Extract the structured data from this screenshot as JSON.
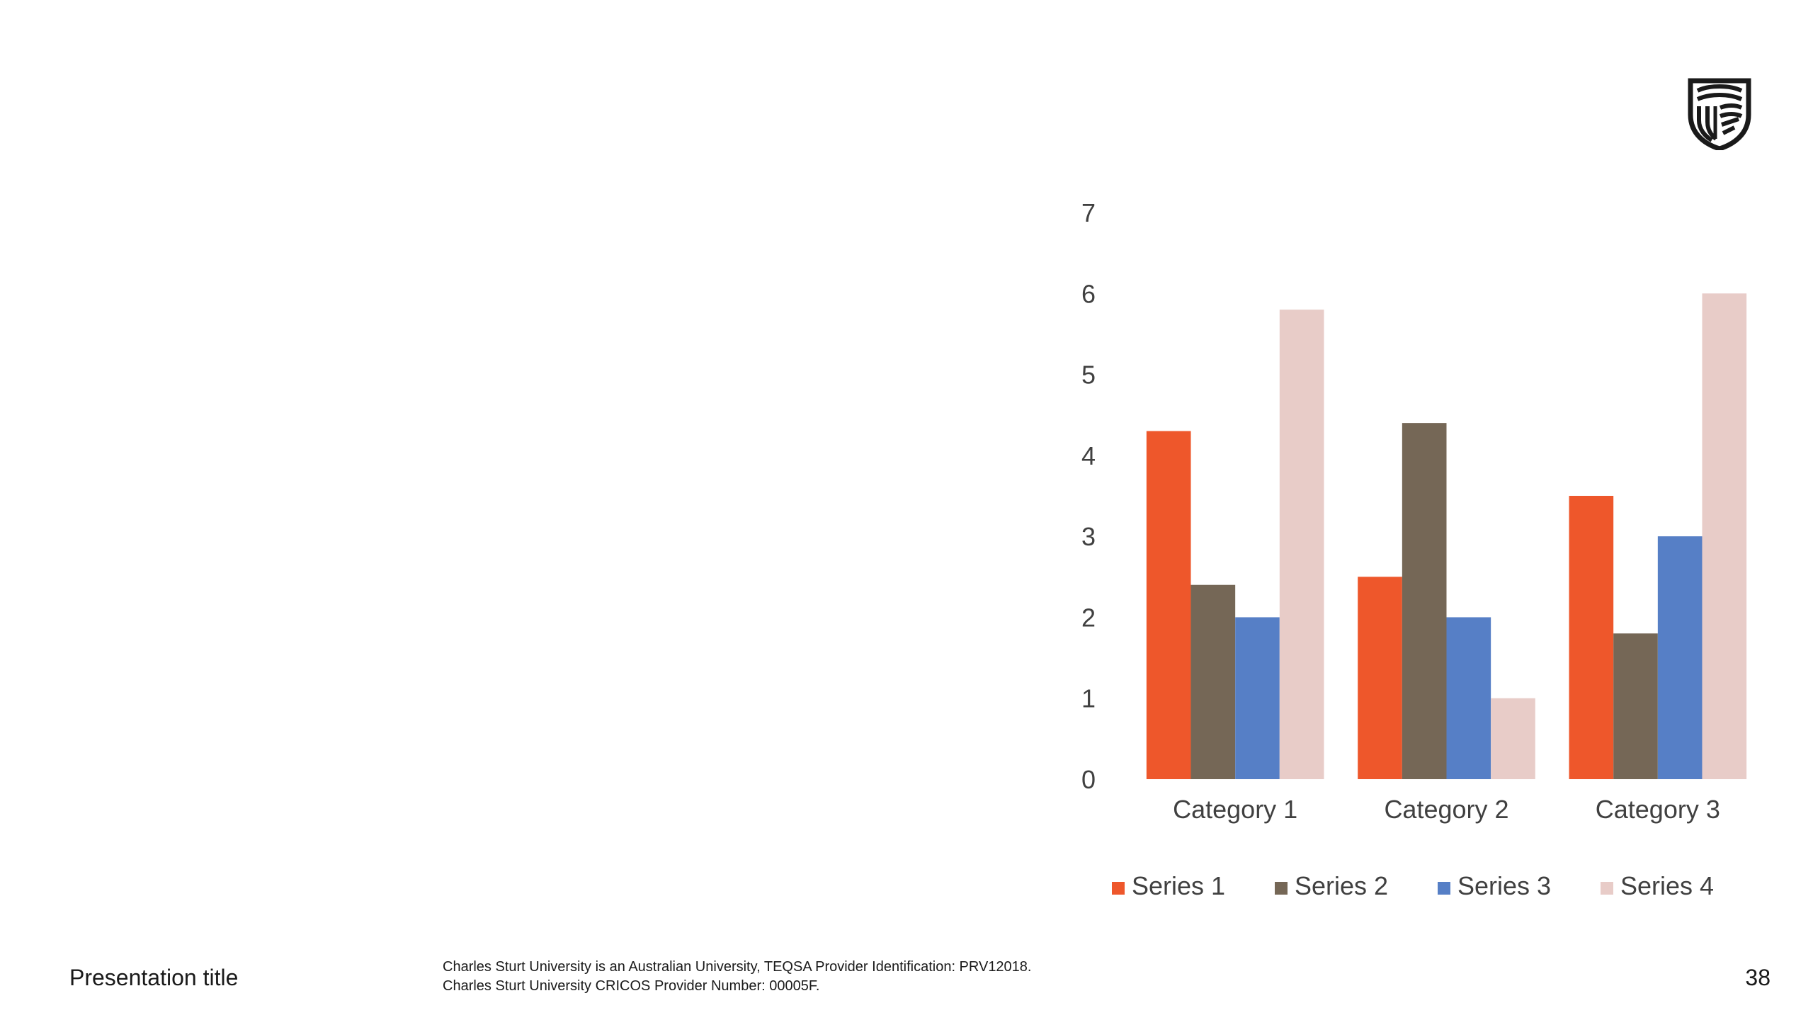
{
  "footer": {
    "title": "Presentation title",
    "disclaimer_line1": "Charles Sturt University is an Australian University, TEQSA Provider Identification: PRV12018.",
    "disclaimer_line2": "Charles Sturt University CRICOS Provider Number: 00005F.",
    "page_number": "38"
  },
  "logo": {
    "icon": "university-shield-icon"
  },
  "chart_data": {
    "type": "bar",
    "categories": [
      "Category 1",
      "Category 2",
      "Category 3"
    ],
    "series": [
      {
        "name": "Series 1",
        "values": [
          4.3,
          2.5,
          3.5
        ],
        "color": "#ee572b"
      },
      {
        "name": "Series 2",
        "values": [
          2.4,
          4.4,
          1.8
        ],
        "color": "#756756"
      },
      {
        "name": "Series 3",
        "values": [
          2,
          2,
          3
        ],
        "color": "#567fc6"
      },
      {
        "name": "Series 4",
        "values": [
          5.8,
          1,
          6
        ],
        "color": "#e8ccc8"
      }
    ],
    "yticks": [
      0,
      1,
      2,
      3,
      4,
      5,
      6,
      7
    ],
    "ylim": [
      0,
      7
    ],
    "grid": false,
    "legend": "bottom"
  }
}
